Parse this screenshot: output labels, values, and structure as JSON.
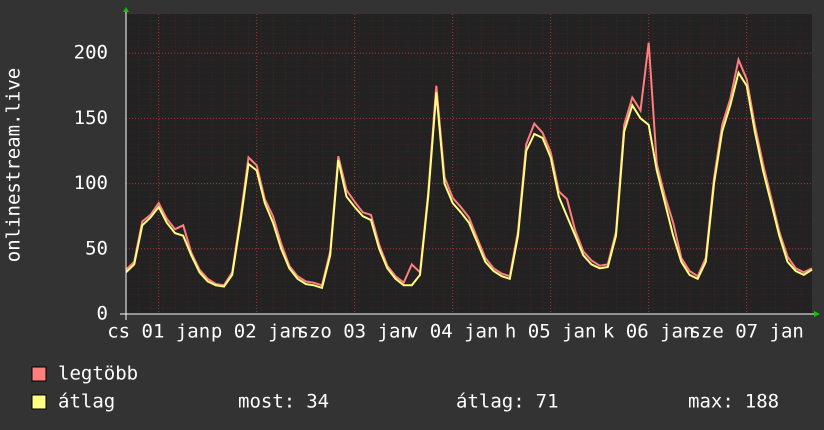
{
  "chart_data": {
    "type": "line",
    "ylabel": "onlinestream.live",
    "x": [
      0,
      2,
      4,
      6,
      8,
      10,
      12,
      14,
      16,
      18,
      20,
      22,
      24,
      26,
      28,
      30,
      32,
      34,
      36,
      38,
      40,
      42,
      44,
      46,
      48,
      50,
      52,
      54,
      56,
      58,
      60,
      62,
      64,
      66,
      68,
      70,
      72,
      74,
      76,
      78,
      80,
      82,
      84,
      86,
      88,
      90,
      92,
      94,
      96,
      98,
      100,
      102,
      104,
      106,
      108,
      110,
      112,
      114,
      116,
      118,
      120,
      122,
      124,
      126,
      128,
      130,
      132,
      134,
      136,
      138,
      140,
      142,
      144,
      146,
      148,
      150,
      152,
      154,
      156,
      158,
      160,
      162,
      164,
      166,
      168
    ],
    "series": [
      {
        "name": "legtöbb",
        "color": "#ff7f7f",
        "values": [
          34,
          40,
          71,
          76,
          85,
          73,
          65,
          68,
          47,
          34,
          27,
          23,
          22,
          32,
          73,
          120,
          114,
          88,
          75,
          54,
          37,
          29,
          25,
          24,
          22,
          48,
          121,
          95,
          86,
          78,
          76,
          53,
          37,
          29,
          24,
          38,
          32,
          93,
          175,
          105,
          89,
          82,
          74,
          58,
          43,
          35,
          31,
          29,
          63,
          130,
          146,
          139,
          124,
          94,
          88,
          64,
          48,
          41,
          37,
          38,
          63,
          145,
          166,
          156,
          208,
          115,
          90,
          70,
          43,
          33,
          29,
          43,
          104,
          145,
          165,
          195,
          180,
          145,
          115,
          89,
          63,
          44,
          35,
          32,
          35
        ]
      },
      {
        "name": "átlag",
        "color": "#ffff80",
        "values": [
          32,
          38,
          68,
          74,
          82,
          70,
          62,
          60,
          45,
          32,
          25,
          22,
          21,
          30,
          70,
          115,
          110,
          85,
          70,
          50,
          35,
          27,
          23,
          22,
          20,
          45,
          118,
          90,
          82,
          75,
          72,
          50,
          35,
          27,
          22,
          22,
          30,
          90,
          170,
          100,
          85,
          78,
          70,
          55,
          40,
          33,
          29,
          27,
          60,
          125,
          138,
          135,
          120,
          90,
          75,
          60,
          45,
          38,
          35,
          36,
          60,
          140,
          160,
          150,
          145,
          110,
          85,
          60,
          40,
          30,
          27,
          40,
          100,
          140,
          160,
          185,
          175,
          140,
          110,
          85,
          60,
          40,
          33,
          30,
          34
        ]
      }
    ],
    "xlim": [
      0,
      168
    ],
    "xticks": [
      {
        "value": 8,
        "label": "cs 01 jan"
      },
      {
        "value": 32,
        "label": "p 02 jan"
      },
      {
        "value": 56,
        "label": "szo 03 jan"
      },
      {
        "value": 80,
        "label": "v 04 jan"
      },
      {
        "value": 104,
        "label": "h 05 jan"
      },
      {
        "value": 128,
        "label": "k 06 jan"
      },
      {
        "value": 152,
        "label": "sze 07 jan"
      }
    ],
    "ylim": [
      0,
      230
    ],
    "yticks": [
      0,
      50,
      100,
      150,
      200
    ],
    "grid": true,
    "stats": [
      {
        "label": "most:",
        "value": 34
      },
      {
        "label": "átlag:",
        "value": 71
      },
      {
        "label": "max:",
        "value": 188
      }
    ]
  }
}
